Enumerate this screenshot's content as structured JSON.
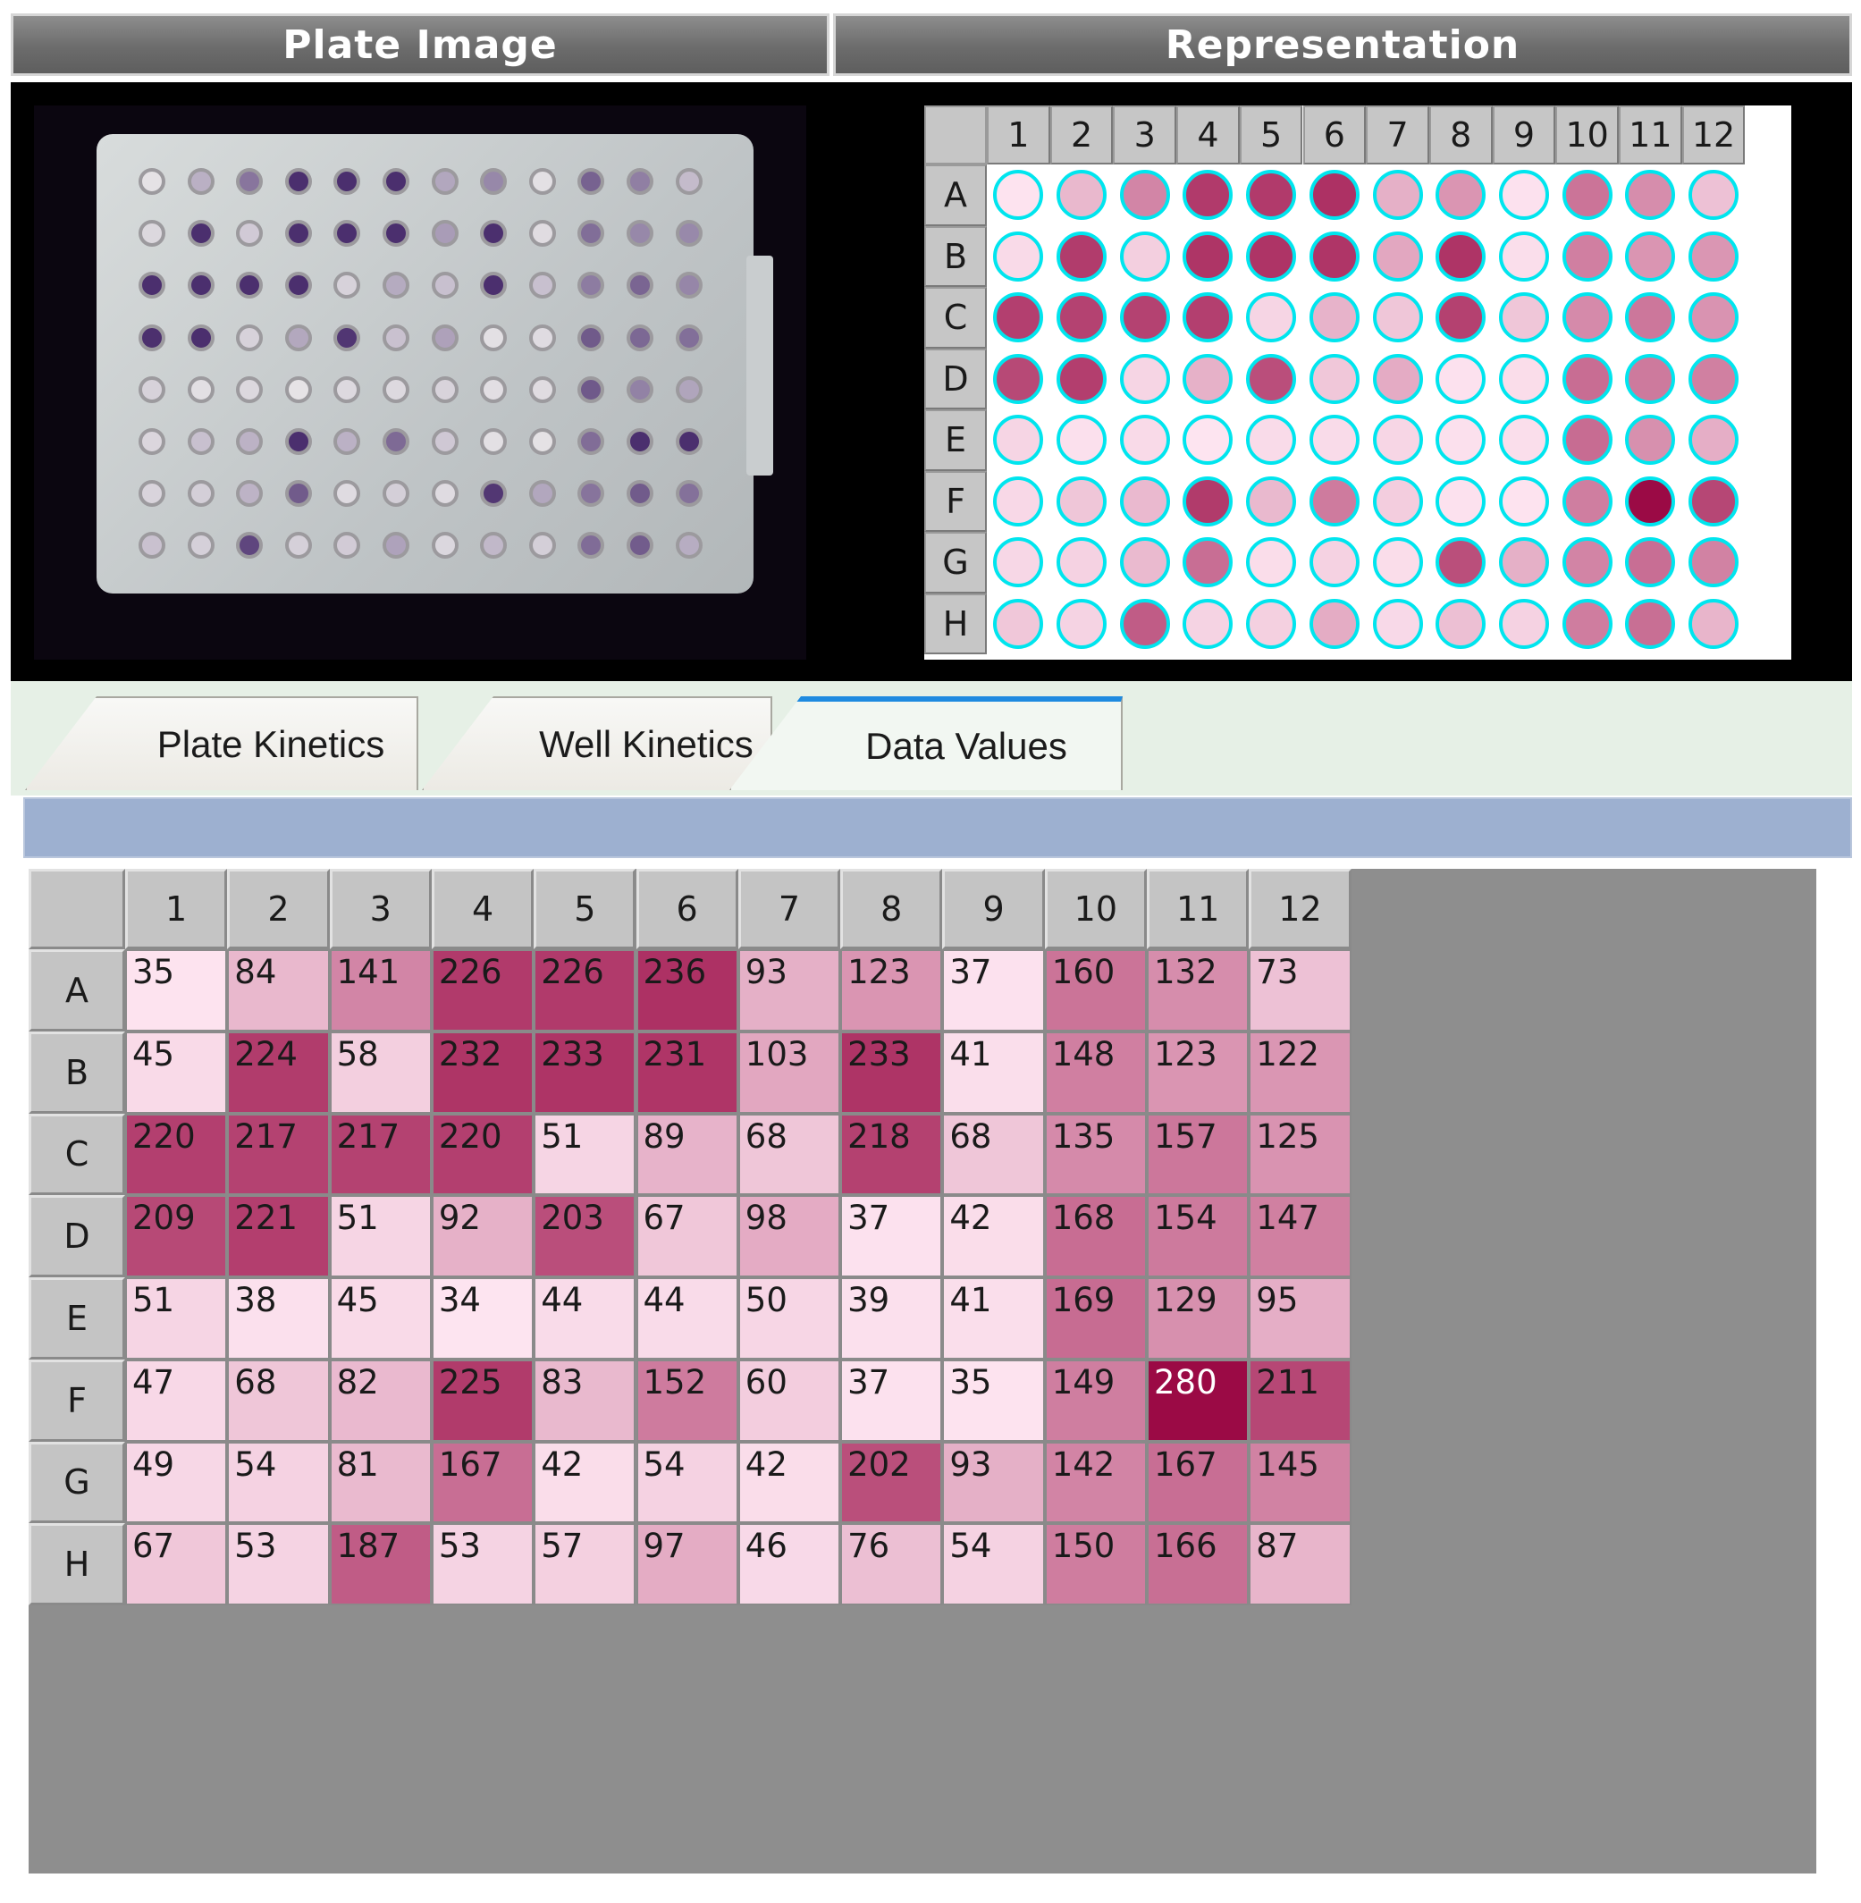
{
  "headers": {
    "plate_image": "Plate Image",
    "representation": "Representation"
  },
  "tabs": [
    {
      "label": "Plate Kinetics"
    },
    {
      "label": "Well Kinetics"
    },
    {
      "label": "Data Values",
      "active": true
    }
  ],
  "grid": {
    "columns": [
      "1",
      "2",
      "3",
      "4",
      "5",
      "6",
      "7",
      "8",
      "9",
      "10",
      "11",
      "12"
    ],
    "rows": [
      "A",
      "B",
      "C",
      "D",
      "E",
      "F",
      "G",
      "H"
    ],
    "values": [
      [
        35,
        84,
        141,
        226,
        226,
        236,
        93,
        123,
        37,
        160,
        132,
        73
      ],
      [
        45,
        224,
        58,
        232,
        233,
        231,
        103,
        233,
        41,
        148,
        123,
        122
      ],
      [
        220,
        217,
        217,
        220,
        51,
        89,
        68,
        218,
        68,
        135,
        157,
        125
      ],
      [
        209,
        221,
        51,
        92,
        203,
        67,
        98,
        37,
        42,
        168,
        154,
        147
      ],
      [
        51,
        38,
        45,
        34,
        44,
        44,
        50,
        39,
        41,
        169,
        129,
        95
      ],
      [
        47,
        68,
        82,
        225,
        83,
        152,
        60,
        37,
        35,
        149,
        280,
        211
      ],
      [
        49,
        54,
        81,
        167,
        42,
        54,
        42,
        202,
        93,
        142,
        167,
        145
      ],
      [
        67,
        53,
        187,
        53,
        57,
        97,
        46,
        76,
        54,
        150,
        166,
        87
      ]
    ]
  },
  "colors": {
    "well_outline": "#00e5ee",
    "low": "#fde4f0",
    "high": "#9b0a45",
    "photo_well_dark": "#4b2f6e",
    "photo_well_light": "#e6e3e6"
  }
}
